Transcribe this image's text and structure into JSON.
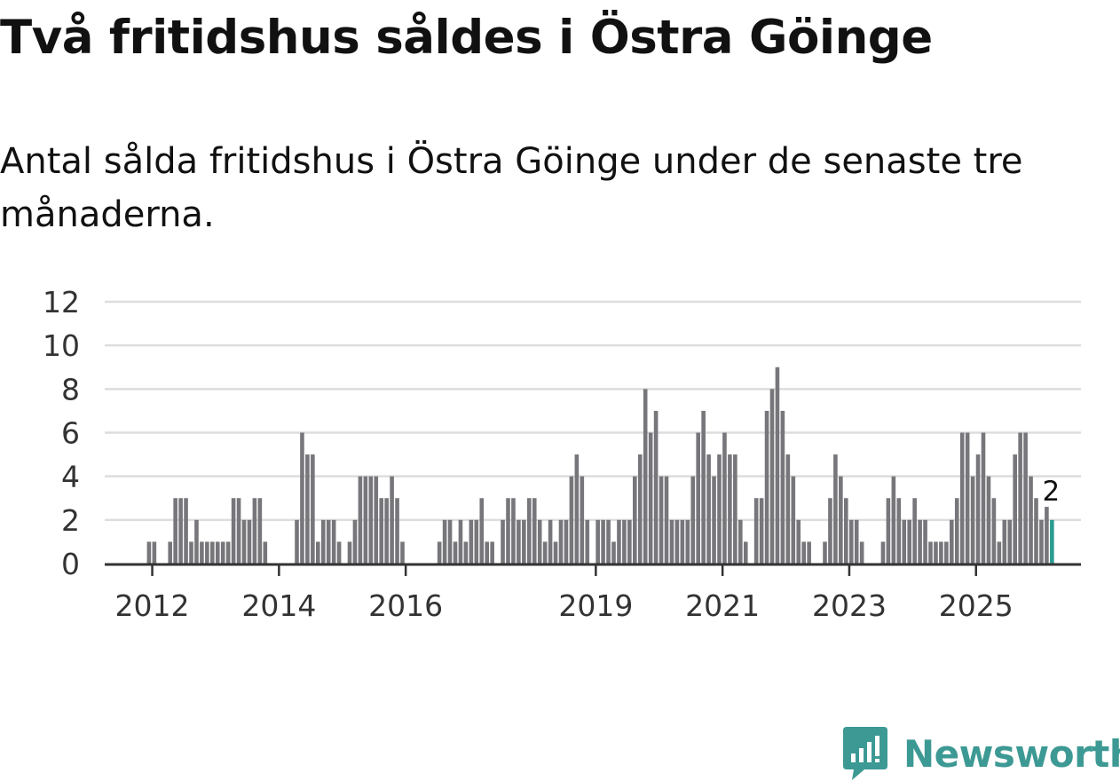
{
  "title": "Två fritidshus såldes i Östra Göinge",
  "subtitle": "Antal sålda fritidshus i Östra Göinge under de senaste tre månaderna.",
  "brand": {
    "name": "Newsworthy",
    "color": "#3d9994"
  },
  "chart_data": {
    "type": "bar",
    "title": "Två fritidshus såldes i Östra Göinge",
    "xlabel": "",
    "ylabel": "",
    "ylim": [
      0,
      12
    ],
    "y_ticks": [
      0,
      2,
      4,
      6,
      8,
      10,
      12
    ],
    "x_ticks": [
      {
        "label": "2012",
        "index": 9
      },
      {
        "label": "2014",
        "index": 33
      },
      {
        "label": "2016",
        "index": 57
      },
      {
        "label": "2019",
        "index": 93
      },
      {
        "label": "2021",
        "index": 117
      },
      {
        "label": "2023",
        "index": 141
      },
      {
        "label": "2025",
        "index": 165
      }
    ],
    "start_period": "2011-01",
    "frequency": "monthly",
    "bar_color": "#77767b",
    "highlight_color": "#2a9d8f",
    "grid": true,
    "highlight_label": "2",
    "values": [
      0,
      0,
      0,
      0,
      0,
      0,
      0,
      0,
      1,
      1,
      0,
      0,
      1,
      3,
      3,
      3,
      1,
      2,
      1,
      1,
      1,
      1,
      1,
      1,
      3,
      3,
      2,
      2,
      3,
      3,
      1,
      0,
      0,
      0,
      0,
      0,
      2,
      6,
      5,
      5,
      1,
      2,
      2,
      2,
      1,
      0,
      1,
      2,
      4,
      4,
      4,
      4,
      3,
      3,
      4,
      3,
      1,
      0,
      0,
      0,
      0,
      0,
      0,
      1,
      2,
      2,
      1,
      2,
      1,
      2,
      2,
      3,
      1,
      1,
      0,
      2,
      3,
      3,
      2,
      2,
      3,
      3,
      2,
      1,
      2,
      1,
      2,
      2,
      4,
      5,
      4,
      2,
      0,
      2,
      2,
      2,
      1,
      2,
      2,
      2,
      4,
      5,
      8,
      6,
      7,
      4,
      4,
      2,
      2,
      2,
      2,
      4,
      6,
      7,
      5,
      4,
      5,
      6,
      5,
      5,
      2,
      1,
      0,
      3,
      3,
      7,
      8,
      9,
      7,
      5,
      4,
      2,
      1,
      1,
      0,
      0,
      1,
      3,
      5,
      4,
      3,
      2,
      2,
      1,
      0,
      0,
      0,
      1,
      3,
      4,
      3,
      2,
      2,
      3,
      2,
      2,
      1,
      1,
      1,
      1,
      2,
      3,
      6,
      6,
      4,
      5,
      6,
      4,
      3,
      1,
      2,
      2,
      5,
      6,
      6,
      4,
      3,
      2,
      2.6,
      2
    ]
  }
}
